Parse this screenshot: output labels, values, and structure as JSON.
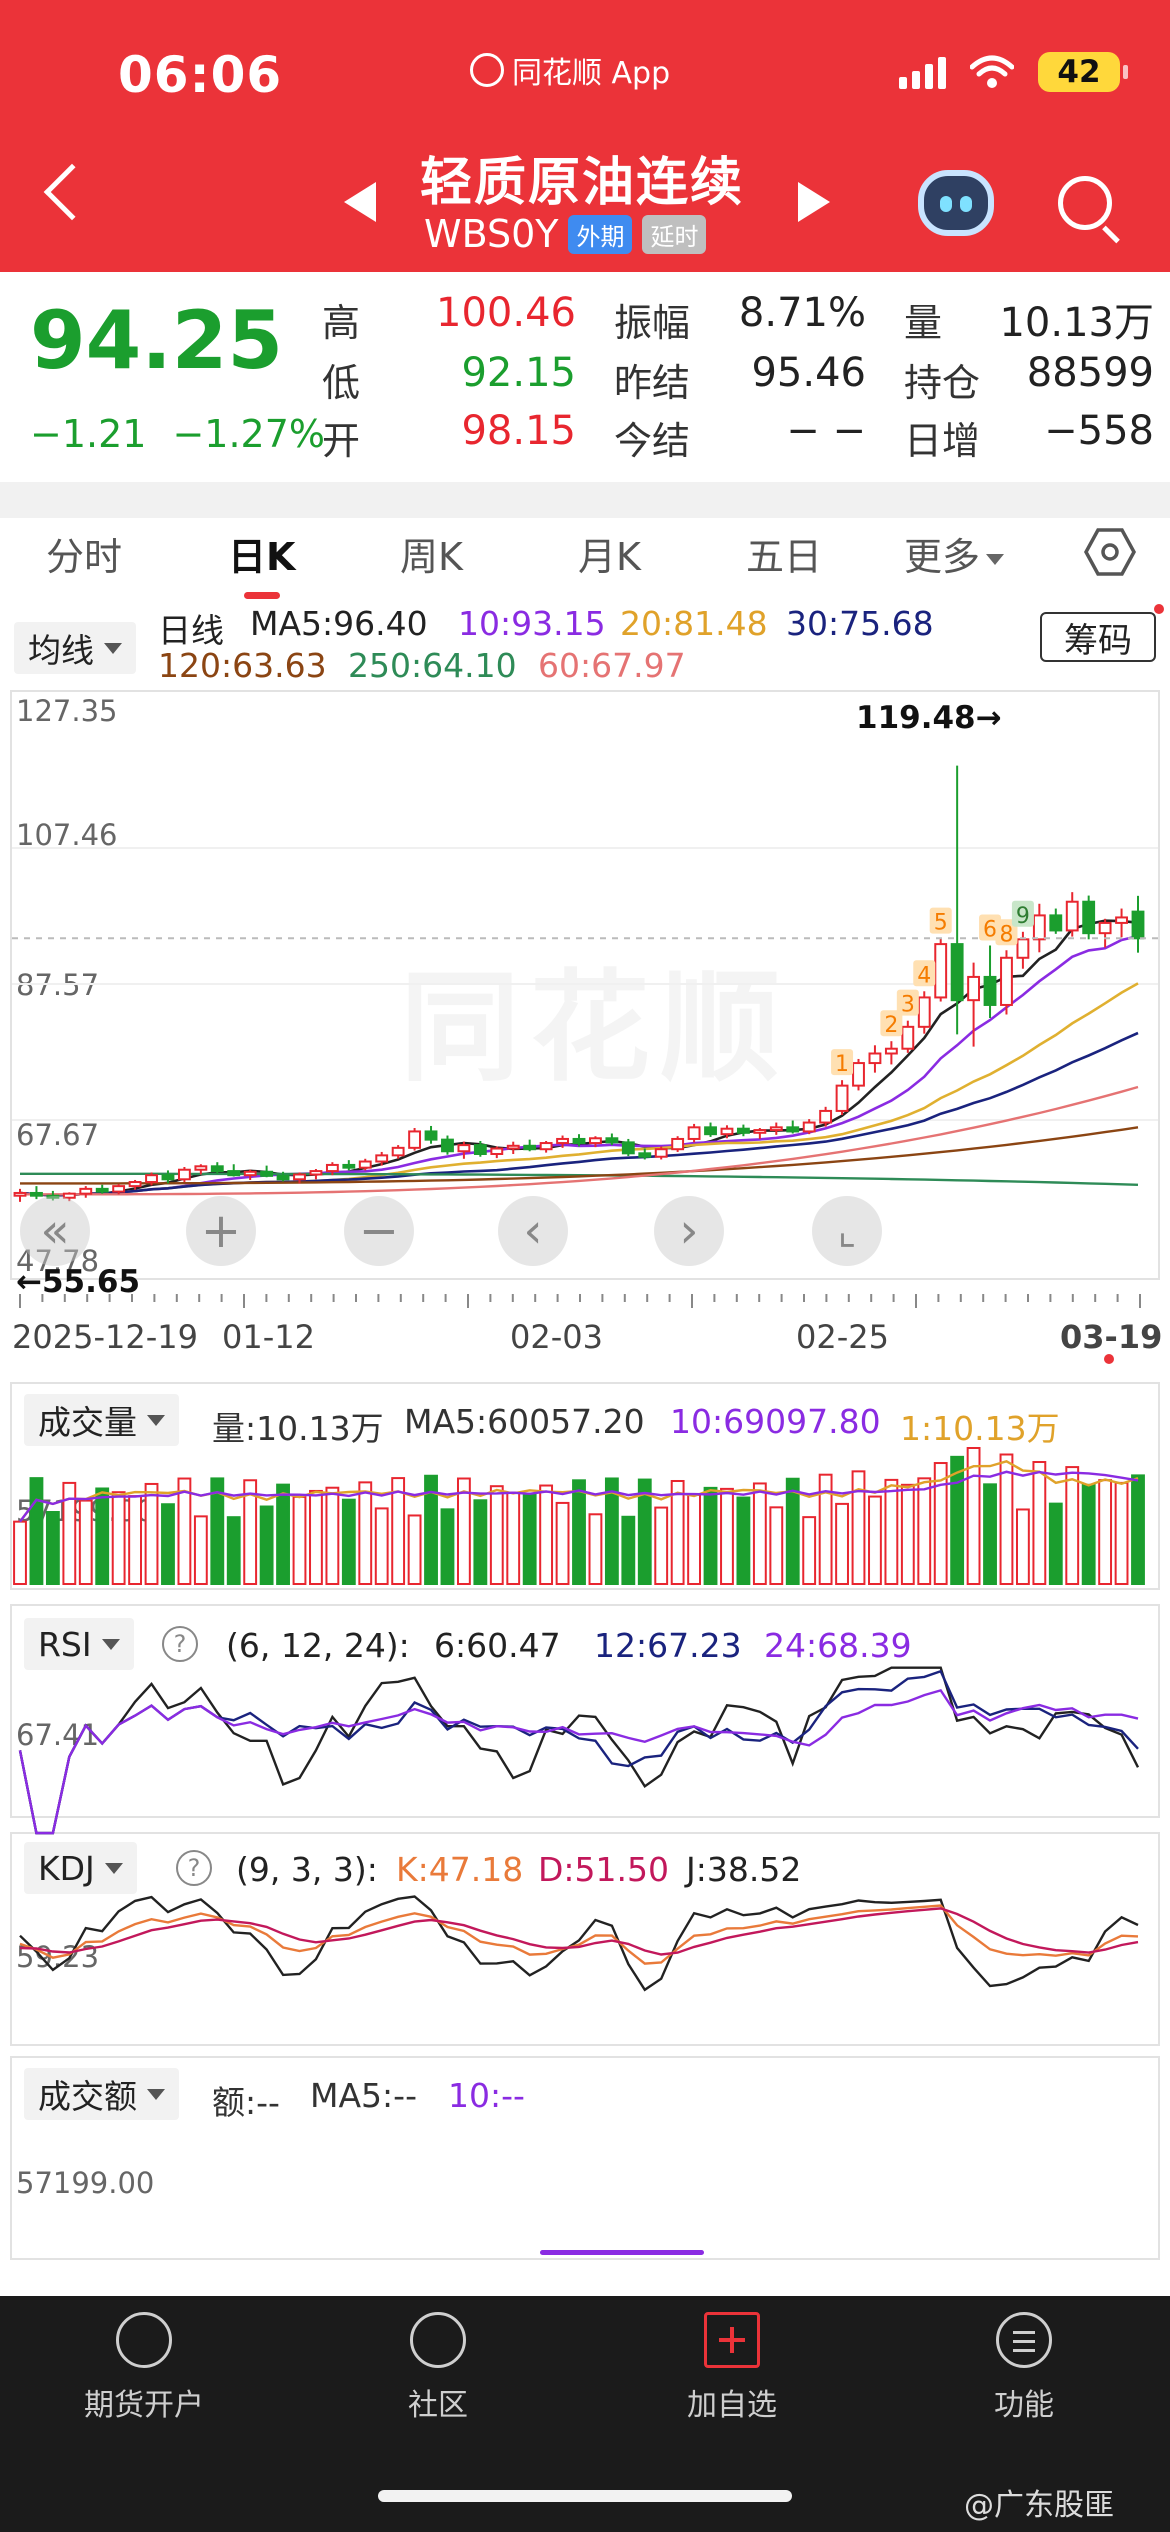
{
  "status_bar": {
    "time": "06:06",
    "app_name": "同花顺 App",
    "battery": "42"
  },
  "header": {
    "title": "轻质原油连续",
    "code": "WBS0Y",
    "tag_foreign": "外期",
    "tag_delay": "延时"
  },
  "quote": {
    "last": "94.25",
    "change": "−1.21",
    "change_pct": "−1.27%",
    "high_label": "高",
    "high": "100.46",
    "low_label": "低",
    "low": "92.15",
    "open_label": "开",
    "open": "98.15",
    "amplitude_label": "振幅",
    "amplitude": "8.71%",
    "prev_settle_label": "昨结",
    "prev_settle": "95.46",
    "settle_label": "今结",
    "settle": "− −",
    "volume_label": "量",
    "volume": "10.13万",
    "open_interest_label": "持仓",
    "open_interest": "88599",
    "daily_inc_label": "日增",
    "daily_inc": "−558"
  },
  "tabs": [
    "分时",
    "日K",
    "周K",
    "月K",
    "五日",
    "更多"
  ],
  "kline": {
    "ma_selector": "均线",
    "chips_button": "筹码",
    "line_label": "日线",
    "ma5": "MA5:96.40",
    "ma10": "10:93.15",
    "ma20": "20:81.48",
    "ma30": "30:75.68",
    "ma120": "120:63.63",
    "ma250": "250:64.10",
    "ma60": "60:67.97",
    "axis": [
      "127.35",
      "107.46",
      "87.57",
      "67.67",
      "47.78"
    ],
    "max_note": "119.48→",
    "min_note": "←55.65",
    "watermark": "同花顺",
    "dates": [
      "2025-12-19",
      "01-12",
      "02-03",
      "02-25",
      "03-19"
    ],
    "signals": [
      "1",
      "2",
      "3",
      "4",
      "5",
      "6",
      "8",
      "9"
    ]
  },
  "volume_panel": {
    "selector": "成交量",
    "vol": "量:10.13万",
    "ma5": "MA5:60057.20",
    "ma10": "10:69097.80",
    "ma1": "1:10.13万",
    "axis": "57199.00"
  },
  "rsi_panel": {
    "selector": "RSI",
    "params": "(6, 12, 24):",
    "r6": "6:60.47",
    "r12": "12:67.23",
    "r24": "24:68.39",
    "axis": "67.41"
  },
  "kdj_panel": {
    "selector": "KDJ",
    "params": "(9, 3, 3):",
    "k": "K:47.18",
    "d": "D:51.50",
    "j": "J:38.52",
    "axis": "59.23"
  },
  "amount_panel": {
    "selector": "成交额",
    "amt": "额:--",
    "ma5": "MA5:--",
    "ma10": "10:--",
    "axis": "57199.00"
  },
  "bottom_nav": [
    "期货开户",
    "社区",
    "加自选",
    "功能"
  ],
  "credit": "@广东股匪",
  "colors": {
    "up": "#e8262f",
    "down": "#1b9e2e",
    "header": "#eb3339"
  },
  "chart_data": {
    "type": "candlestick",
    "ylim": [
      47.78,
      127.35
    ],
    "candles": [
      [
        56.6,
        57.6,
        55.7,
        57.0
      ],
      [
        57.0,
        58.0,
        56.1,
        56.6
      ],
      [
        56.6,
        57.3,
        55.9,
        56.3
      ],
      [
        56.3,
        57.1,
        55.8,
        56.9
      ],
      [
        56.9,
        58.0,
        56.3,
        57.6
      ],
      [
        57.6,
        58.2,
        56.9,
        57.2
      ],
      [
        57.2,
        58.3,
        56.8,
        58.0
      ],
      [
        58.0,
        58.9,
        57.5,
        58.6
      ],
      [
        58.6,
        60.0,
        58.1,
        59.6
      ],
      [
        59.6,
        60.3,
        58.4,
        59.0
      ],
      [
        59.0,
        60.8,
        58.6,
        60.4
      ],
      [
        60.4,
        61.2,
        59.7,
        60.9
      ],
      [
        60.9,
        61.5,
        59.8,
        60.2
      ],
      [
        60.2,
        61.2,
        59.4,
        59.6
      ],
      [
        59.6,
        60.4,
        58.9,
        60.1
      ],
      [
        60.1,
        61.0,
        59.3,
        59.5
      ],
      [
        59.5,
        60.1,
        58.7,
        59.0
      ],
      [
        59.0,
        60.0,
        58.4,
        59.7
      ],
      [
        59.7,
        60.5,
        59.0,
        60.2
      ],
      [
        60.2,
        61.5,
        59.6,
        61.1
      ],
      [
        61.1,
        61.8,
        60.3,
        60.7
      ],
      [
        60.7,
        62.0,
        60.3,
        61.6
      ],
      [
        61.6,
        63.0,
        61.0,
        62.5
      ],
      [
        62.5,
        64.0,
        62.0,
        63.6
      ],
      [
        63.6,
        66.5,
        63.2,
        66.0
      ],
      [
        66.0,
        66.8,
        64.2,
        64.8
      ],
      [
        64.8,
        65.4,
        62.6,
        63.1
      ],
      [
        63.1,
        64.5,
        62.0,
        64.0
      ],
      [
        64.0,
        64.6,
        62.3,
        62.7
      ],
      [
        62.7,
        63.8,
        62.1,
        63.5
      ],
      [
        63.5,
        64.5,
        62.7,
        63.9
      ],
      [
        63.9,
        64.8,
        63.1,
        63.4
      ],
      [
        63.4,
        64.6,
        62.9,
        64.3
      ],
      [
        64.3,
        65.4,
        63.6,
        64.9
      ],
      [
        64.9,
        65.6,
        63.8,
        64.3
      ],
      [
        64.3,
        65.3,
        63.7,
        65.0
      ],
      [
        65.0,
        65.7,
        64.0,
        64.4
      ],
      [
        64.4,
        64.9,
        62.4,
        62.8
      ],
      [
        62.8,
        63.5,
        61.9,
        62.3
      ],
      [
        62.3,
        63.8,
        61.9,
        63.4
      ],
      [
        63.4,
        65.3,
        63.0,
        64.9
      ],
      [
        64.9,
        67.1,
        64.4,
        66.6
      ],
      [
        66.6,
        67.3,
        65.2,
        65.6
      ],
      [
        65.6,
        66.9,
        65.0,
        66.4
      ],
      [
        66.4,
        67.0,
        65.3,
        65.8
      ],
      [
        65.8,
        66.5,
        64.9,
        66.2
      ],
      [
        66.2,
        67.3,
        65.5,
        66.6
      ],
      [
        66.6,
        67.6,
        65.7,
        66.0
      ],
      [
        66.0,
        67.8,
        65.6,
        67.3
      ],
      [
        67.3,
        69.6,
        66.7,
        69.0
      ],
      [
        69.0,
        73.5,
        68.4,
        72.7
      ],
      [
        72.7,
        76.6,
        72.0,
        76.0
      ],
      [
        76.0,
        78.6,
        74.6,
        77.4
      ],
      [
        77.4,
        79.2,
        75.8,
        78.1
      ],
      [
        78.1,
        82.2,
        77.5,
        81.3
      ],
      [
        81.3,
        86.5,
        80.3,
        85.6
      ],
      [
        85.6,
        94.2,
        85.0,
        93.4
      ],
      [
        93.4,
        119.5,
        80.2,
        85.2
      ],
      [
        85.2,
        90.7,
        78.4,
        88.6
      ],
      [
        88.6,
        93.2,
        82.6,
        84.5
      ],
      [
        84.5,
        92.5,
        83.1,
        91.4
      ],
      [
        91.4,
        95.2,
        89.8,
        94.1
      ],
      [
        94.1,
        99.3,
        92.2,
        97.6
      ],
      [
        97.6,
        98.6,
        94.9,
        95.4
      ],
      [
        95.4,
        101.0,
        94.5,
        99.6
      ],
      [
        99.6,
        100.5,
        94.1,
        95.0
      ],
      [
        95.0,
        97.1,
        92.9,
        96.5
      ],
      [
        96.5,
        98.6,
        94.4,
        97.3
      ],
      [
        98.15,
        100.46,
        92.15,
        94.25
      ]
    ]
  }
}
